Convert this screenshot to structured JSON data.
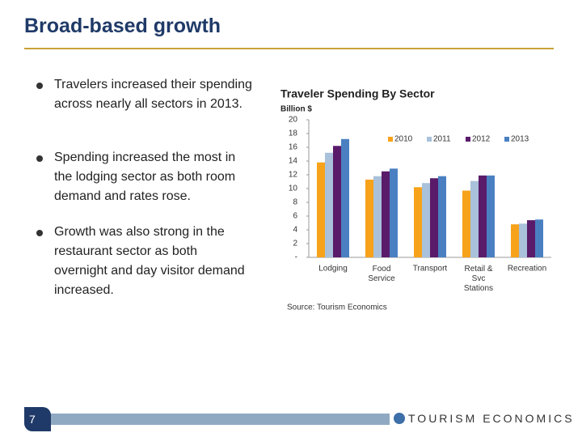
{
  "header": {
    "title": "Broad-based growth"
  },
  "bullets": [
    "Travelers increased their spending across nearly all sectors in 2013.",
    "Spending increased the most in the lodging sector as both room demand and rates rose.",
    "Growth was also strong in the restaurant sector as both overnight and day visitor demand increased."
  ],
  "footer": {
    "page": "7",
    "logo": "TOURISM ECONOMICS"
  },
  "chart_data": {
    "type": "bar",
    "title": "Traveler Spending By Sector",
    "y_label": "Billion $",
    "source": "Source: Tourism Economics",
    "categories": [
      "Lodging",
      "Food\nService",
      "Transport",
      "Retail &\nSvc\nStations",
      "Recreation"
    ],
    "series": [
      {
        "name": "2010",
        "color": "#f7a21b",
        "values": [
          13.8,
          11.3,
          10.2,
          9.7,
          4.8
        ]
      },
      {
        "name": "2011",
        "color": "#a9c1da",
        "values": [
          15.2,
          11.8,
          10.8,
          11.1,
          4.9
        ]
      },
      {
        "name": "2012",
        "color": "#5a1b6a",
        "values": [
          16.2,
          12.5,
          11.5,
          11.9,
          5.4
        ]
      },
      {
        "name": "2013",
        "color": "#4a80c2",
        "values": [
          17.2,
          12.9,
          11.8,
          11.9,
          5.5
        ]
      }
    ],
    "ylim": [
      0,
      20
    ],
    "yticks": [
      {
        "value": 0,
        "label": "-"
      },
      2,
      4,
      6,
      8,
      10,
      12,
      14,
      16,
      18,
      20
    ],
    "legend": "top-right"
  }
}
